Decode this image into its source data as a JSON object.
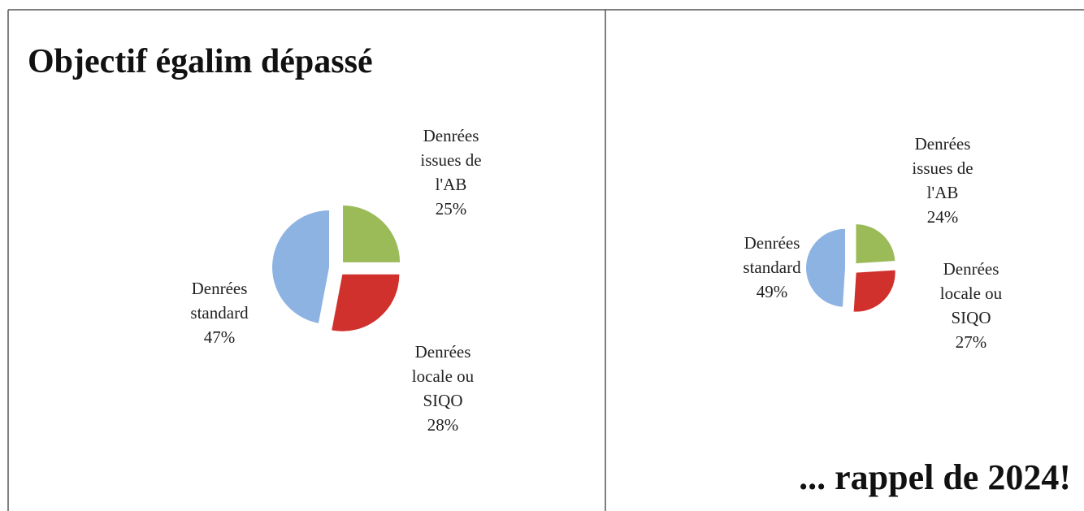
{
  "chart_data": [
    {
      "type": "pie",
      "title": "Objectif égalim dépassé",
      "categories": [
        "Denrées issues de l'AB",
        "Denrées locale ou SIQO",
        "Denrées standard"
      ],
      "values": [
        25,
        28,
        47
      ],
      "value_labels": [
        "25%",
        "28%",
        "47%"
      ],
      "colors": [
        "#9bbb59",
        "#d0312d",
        "#8db3e2"
      ]
    },
    {
      "type": "pie",
      "title": "... rappel de 2024!",
      "categories": [
        "Denrées issues de l'AB",
        "Denrées locale ou SIQO",
        "Denrées standard"
      ],
      "values": [
        24,
        27,
        49
      ],
      "value_labels": [
        "24%",
        "27%",
        "49%"
      ],
      "colors": [
        "#9bbb59",
        "#d0312d",
        "#8db3e2"
      ]
    }
  ]
}
